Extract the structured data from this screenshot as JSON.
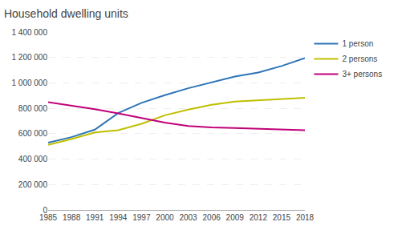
{
  "chart_data": {
    "type": "line",
    "title": "Household dwelling units",
    "x": [
      1985,
      1988,
      1991,
      1994,
      1997,
      2000,
      2003,
      2006,
      2009,
      2012,
      2015,
      2018
    ],
    "series": [
      {
        "name": "1 person",
        "color": "#2e75b6",
        "values": [
          530000,
          573000,
          632000,
          762000,
          843000,
          903000,
          958000,
          1002000,
          1050000,
          1082000,
          1133000,
          1195000
        ]
      },
      {
        "name": "2 persons",
        "color": "#bfbf00",
        "values": [
          512000,
          558000,
          610000,
          628000,
          678000,
          745000,
          790000,
          828000,
          853000,
          864000,
          873000,
          883000
        ]
      },
      {
        "name": "3+ persons",
        "color": "#c00078",
        "values": [
          848000,
          822000,
          793000,
          760000,
          722000,
          688000,
          660000,
          650000,
          645000,
          640000,
          635000,
          628000
        ]
      }
    ],
    "xlim": [
      1985,
      2018
    ],
    "xticks": [
      1985,
      1988,
      1991,
      1994,
      1997,
      2000,
      2003,
      2006,
      2009,
      2012,
      2015,
      2018
    ],
    "ylim": [
      0,
      1400000
    ],
    "yticks": [
      0,
      {
        "value": 200000,
        "label": "200 000"
      },
      {
        "value": 400000,
        "label": "400 000"
      },
      {
        "value": 600000,
        "label": "600 000"
      },
      {
        "value": 800000,
        "label": "800 000"
      },
      {
        "value": 1000000,
        "label": "1 000 000"
      },
      {
        "value": 1200000,
        "label": "1 200 000"
      },
      {
        "value": 1400000,
        "label": "1 400 000"
      }
    ],
    "grid": true,
    "legend": "upper right"
  }
}
